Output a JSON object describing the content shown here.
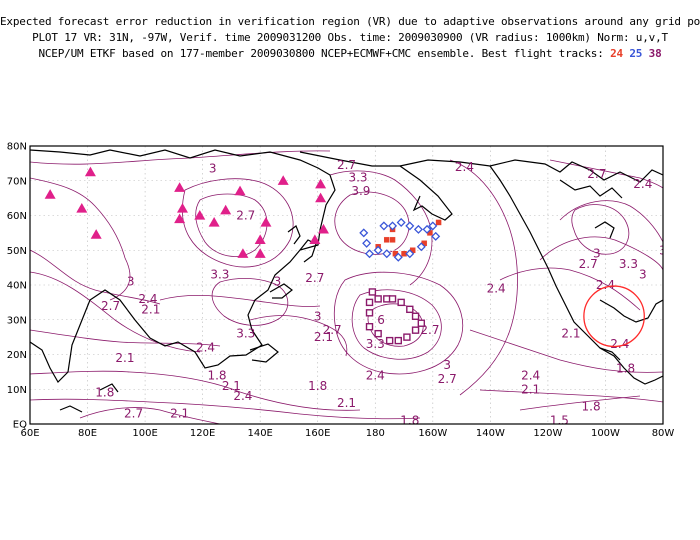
{
  "header": {
    "line1": "Expected forecast error reduction in verification region (VR) due to adaptive observations around any grid point.",
    "line2": "PLOT 17 VR: 31N, -97W, Verif. time 2009031200 Obs. time: 2009030900 (VR radius: 1000km) Norm: u,v,T",
    "line3_prefix": "NCEP/UM ETKF based on 177-member 2009030800 NCEP+ECMWF+CMC ensemble. Best flight tracks:",
    "tracks": [
      {
        "id": "24",
        "color": "#e8402a"
      },
      {
        "id": "25",
        "color": "#3a56d8"
      },
      {
        "id": "38",
        "color": "#8b1a6b"
      }
    ]
  },
  "map": {
    "lon_range": [
      80,
      280
    ],
    "lat_range": [
      0,
      80
    ],
    "lon_labels": [
      "60E",
      "80E",
      "100E",
      "120E",
      "140E",
      "160E",
      "180",
      "160W",
      "140W",
      "120W",
      "100W",
      "80W"
    ],
    "lat_labels": [
      "EQ",
      "10N",
      "20N",
      "30N",
      "40N",
      "50N",
      "60N",
      "70N",
      "80N"
    ],
    "contour_labels": [
      {
        "text": "3",
        "lon": 123.5,
        "lat": 73.5
      },
      {
        "text": "2.7",
        "lon": 170,
        "lat": 74.5
      },
      {
        "text": "3.3",
        "lon": 174,
        "lat": 71
      },
      {
        "text": "3.9",
        "lon": 175,
        "lat": 67
      },
      {
        "text": "2.4",
        "lon": 211,
        "lat": 74
      },
      {
        "text": "2.7",
        "lon": 257,
        "lat": 72
      },
      {
        "text": "2.4",
        "lon": 273,
        "lat": 69
      },
      {
        "text": "2.7",
        "lon": 135,
        "lat": 60
      },
      {
        "text": "3",
        "lon": 257,
        "lat": 49
      },
      {
        "text": "3.3",
        "lon": 268,
        "lat": 46
      },
      {
        "text": "3",
        "lon": 273,
        "lat": 43
      },
      {
        "text": "3",
        "lon": 280,
        "lat": 50
      },
      {
        "text": "2.7",
        "lon": 254,
        "lat": 46
      },
      {
        "text": "2.4",
        "lon": 260,
        "lat": 40
      },
      {
        "text": "3",
        "lon": 95,
        "lat": 41
      },
      {
        "text": "2.7",
        "lon": 88,
        "lat": 34
      },
      {
        "text": "2.4",
        "lon": 101,
        "lat": 36
      },
      {
        "text": "2.1",
        "lon": 102,
        "lat": 33
      },
      {
        "text": "3.3",
        "lon": 126,
        "lat": 43
      },
      {
        "text": "3",
        "lon": 146,
        "lat": 41
      },
      {
        "text": "2.7",
        "lon": 159,
        "lat": 42
      },
      {
        "text": "2.4",
        "lon": 222,
        "lat": 39
      },
      {
        "text": "3.3",
        "lon": 135,
        "lat": 26
      },
      {
        "text": "3",
        "lon": 160,
        "lat": 31
      },
      {
        "text": "2.7",
        "lon": 165,
        "lat": 27
      },
      {
        "text": "2.1",
        "lon": 162,
        "lat": 25
      },
      {
        "text": "2.4",
        "lon": 121,
        "lat": 22
      },
      {
        "text": "2.1",
        "lon": 248,
        "lat": 26
      },
      {
        "text": "3.3",
        "lon": 180,
        "lat": 23
      },
      {
        "text": "6",
        "lon": 182,
        "lat": 30
      },
      {
        "text": "2.7",
        "lon": 199,
        "lat": 27
      },
      {
        "text": "3",
        "lon": 205,
        "lat": 17
      },
      {
        "text": "2.7",
        "lon": 205,
        "lat": 13
      },
      {
        "text": "2.4",
        "lon": 180,
        "lat": 14
      },
      {
        "text": "2.1",
        "lon": 93,
        "lat": 19
      },
      {
        "text": "1.8",
        "lon": 125,
        "lat": 14
      },
      {
        "text": "2.1",
        "lon": 130,
        "lat": 11
      },
      {
        "text": "1.8",
        "lon": 160,
        "lat": 11
      },
      {
        "text": "2.4",
        "lon": 134,
        "lat": 8
      },
      {
        "text": "2.1",
        "lon": 170,
        "lat": 6
      },
      {
        "text": "2.4",
        "lon": 234,
        "lat": 14
      },
      {
        "text": "2.1",
        "lon": 234,
        "lat": 10
      },
      {
        "text": "1.8",
        "lon": 192,
        "lat": 1
      },
      {
        "text": "1.8",
        "lon": 86,
        "lat": 9
      },
      {
        "text": "2.7",
        "lon": 96,
        "lat": 3
      },
      {
        "text": "2.1",
        "lon": 112,
        "lat": 3
      },
      {
        "text": "1.5",
        "lon": 244,
        "lat": 1
      },
      {
        "text": "1.8",
        "lon": 255,
        "lat": 5
      },
      {
        "text": "1.8",
        "lon": 267,
        "lat": 16
      },
      {
        "text": "2.4",
        "lon": 265,
        "lat": 23
      }
    ],
    "triangles": [
      {
        "lon": 67,
        "lat": 66
      },
      {
        "lon": 81,
        "lat": 72.5
      },
      {
        "lon": 78,
        "lat": 62
      },
      {
        "lon": 83,
        "lat": 54.5
      },
      {
        "lon": 112,
        "lat": 68
      },
      {
        "lon": 113,
        "lat": 62
      },
      {
        "lon": 112,
        "lat": 59
      },
      {
        "lon": 119,
        "lat": 60
      },
      {
        "lon": 124,
        "lat": 58
      },
      {
        "lon": 128,
        "lat": 61.5
      },
      {
        "lon": 133,
        "lat": 67
      },
      {
        "lon": 142,
        "lat": 58
      },
      {
        "lon": 148,
        "lat": 70
      },
      {
        "lon": 161,
        "lat": 69
      },
      {
        "lon": 161,
        "lat": 65
      },
      {
        "lon": 162,
        "lat": 56
      },
      {
        "lon": 159,
        "lat": 53
      },
      {
        "lon": 134,
        "lat": 49
      },
      {
        "lon": 140,
        "lat": 53
      },
      {
        "lon": 140,
        "lat": 49
      }
    ],
    "track_colors": {
      "t24": "#e8402a",
      "t25": "#3a56d8",
      "t38": "#8b1a6b"
    },
    "track24": [
      [
        181,
        51
      ],
      [
        184,
        53
      ],
      [
        187,
        49
      ],
      [
        190,
        49
      ],
      [
        193,
        50
      ],
      [
        197,
        52
      ],
      [
        199,
        55
      ],
      [
        202,
        58
      ],
      [
        186,
        53
      ],
      [
        186,
        56
      ]
    ],
    "track25": [
      [
        176,
        55
      ],
      [
        177,
        52
      ],
      [
        178,
        49
      ],
      [
        181,
        50
      ],
      [
        183,
        57
      ],
      [
        186,
        57
      ],
      [
        189,
        58
      ],
      [
        192,
        57
      ],
      [
        195,
        56
      ],
      [
        198,
        56
      ],
      [
        200,
        57
      ],
      [
        201,
        54
      ],
      [
        188,
        48
      ],
      [
        192,
        49
      ],
      [
        196,
        51
      ],
      [
        184,
        49
      ]
    ],
    "track38": [
      [
        179,
        38
      ],
      [
        181,
        36
      ],
      [
        184,
        36
      ],
      [
        186,
        36
      ],
      [
        189,
        35
      ],
      [
        192,
        33
      ],
      [
        194,
        31
      ],
      [
        196,
        29
      ],
      [
        194,
        27
      ],
      [
        191,
        25
      ],
      [
        188,
        24
      ],
      [
        185,
        24
      ],
      [
        181,
        26
      ],
      [
        178,
        28
      ],
      [
        178,
        32
      ],
      [
        178,
        35
      ]
    ],
    "vr_circle": {
      "lat": 31,
      "lon": 263,
      "radius_deg": 10.5
    }
  }
}
